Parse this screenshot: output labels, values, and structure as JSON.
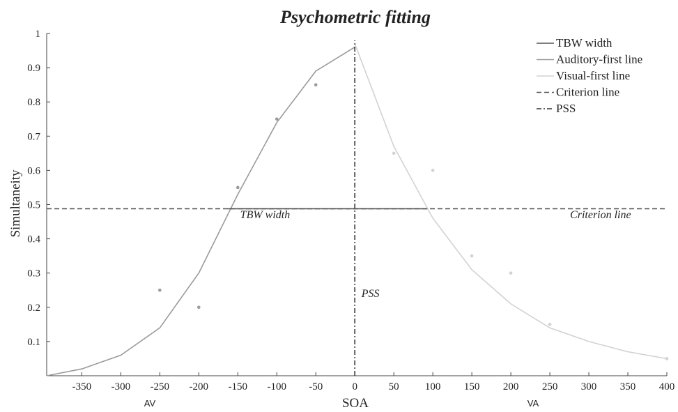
{
  "chart_data": {
    "type": "line",
    "title": "Psychometric fitting",
    "xlabel": "SOA",
    "ylabel": "Simultaneity",
    "x_side_labels": {
      "left": "AV",
      "right": "VA"
    },
    "xlim": [
      -395,
      400
    ],
    "ylim": [
      0,
      1
    ],
    "xticks": [
      -350,
      -300,
      -250,
      -200,
      -150,
      -100,
      -50,
      0,
      50,
      100,
      150,
      200,
      250,
      300,
      350,
      400
    ],
    "yticks": [
      0.1,
      0.2,
      0.3,
      0.4,
      0.5,
      0.6,
      0.7,
      0.8,
      0.9,
      1
    ],
    "grid": false,
    "legend_position": "top-right",
    "series": [
      {
        "name": "Auditory-first line",
        "color": "#9a9a9a",
        "style": "solid",
        "x": [
          -395,
          -350,
          -300,
          -250,
          -200,
          -150,
          -100,
          -50,
          0
        ],
        "y": [
          0.0,
          0.02,
          0.06,
          0.14,
          0.3,
          0.53,
          0.74,
          0.89,
          0.96
        ]
      },
      {
        "name": "Visual-first line",
        "color": "#d2d2d2",
        "style": "solid",
        "x": [
          0,
          50,
          100,
          150,
          200,
          250,
          300,
          350,
          400
        ],
        "y": [
          0.97,
          0.67,
          0.46,
          0.31,
          0.21,
          0.14,
          0.1,
          0.07,
          0.05
        ]
      },
      {
        "name": "TBW width",
        "color": "#555555",
        "style": "solid",
        "x": [
          -163,
          93
        ],
        "y": [
          0.488,
          0.488
        ]
      },
      {
        "name": "Criterion line",
        "color": "#555555",
        "style": "dashed",
        "x": [
          -395,
          400
        ],
        "y": [
          0.488,
          0.488
        ]
      },
      {
        "name": "PSS",
        "color": "#333333",
        "style": "dashdot",
        "x": [
          0,
          0
        ],
        "y": [
          0,
          0.98
        ]
      }
    ],
    "points": [
      {
        "x": -250,
        "y": 0.25,
        "color": "#9a9a9a"
      },
      {
        "x": -200,
        "y": 0.2,
        "color": "#9a9a9a"
      },
      {
        "x": -150,
        "y": 0.55,
        "color": "#9a9a9a"
      },
      {
        "x": -100,
        "y": 0.75,
        "color": "#9a9a9a"
      },
      {
        "x": -50,
        "y": 0.85,
        "color": "#9a9a9a"
      },
      {
        "x": 50,
        "y": 0.65,
        "color": "#d2d2d2"
      },
      {
        "x": 100,
        "y": 0.6,
        "color": "#d2d2d2"
      },
      {
        "x": 150,
        "y": 0.35,
        "color": "#d2d2d2"
      },
      {
        "x": 200,
        "y": 0.3,
        "color": "#d2d2d2"
      },
      {
        "x": 250,
        "y": 0.15,
        "color": "#d2d2d2"
      },
      {
        "x": 400,
        "y": 0.05,
        "color": "#d2d2d2"
      }
    ],
    "annotations": [
      {
        "text": "TBW width",
        "x": -115,
        "y": 0.46
      },
      {
        "text": "Criterion line",
        "x": 315,
        "y": 0.46
      },
      {
        "text": "PSS",
        "x": 20,
        "y": 0.23
      }
    ],
    "legend": [
      {
        "label": "TBW width",
        "color": "#555555",
        "style": "solid"
      },
      {
        "label": "Auditory-first line",
        "color": "#9a9a9a",
        "style": "solid"
      },
      {
        "label": "Visual-first line",
        "color": "#d2d2d2",
        "style": "solid"
      },
      {
        "label": "Criterion line",
        "color": "#555555",
        "style": "dashed"
      },
      {
        "label": "PSS",
        "color": "#333333",
        "style": "dashdot"
      }
    ]
  }
}
